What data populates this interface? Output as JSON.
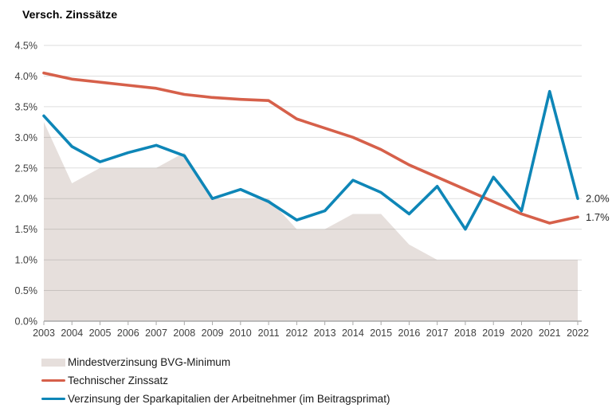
{
  "page": {
    "title": "Versch. Zinssätze"
  },
  "chart_data": {
    "type": "area+line",
    "title": "Versch. Zinssätze",
    "xlabel": "",
    "ylabel": "",
    "x": [
      2003,
      2004,
      2005,
      2006,
      2007,
      2008,
      2009,
      2010,
      2011,
      2012,
      2013,
      2014,
      2015,
      2016,
      2017,
      2018,
      2019,
      2020,
      2021,
      2022
    ],
    "series": [
      {
        "name": "Mindestverzinsung BVG-Minimum",
        "slug": "bvg-minimum",
        "type": "area",
        "color": "#e6dfdc",
        "values": [
          3.25,
          2.25,
          2.5,
          2.5,
          2.5,
          2.75,
          2.0,
          2.0,
          2.0,
          1.5,
          1.5,
          1.75,
          1.75,
          1.25,
          1.0,
          1.0,
          1.0,
          1.0,
          1.0,
          1.0
        ]
      },
      {
        "name": "Technischer Zinssatz",
        "slug": "technischer-zinssatz",
        "type": "line",
        "color": "#d6604a",
        "values": [
          4.05,
          3.95,
          3.9,
          3.85,
          3.8,
          3.7,
          3.65,
          3.62,
          3.6,
          3.3,
          3.15,
          3.0,
          2.8,
          2.55,
          2.35,
          2.15,
          1.95,
          1.75,
          1.6,
          1.7
        ]
      },
      {
        "name": "Verzinsung der Sparkapitalien der Arbeitnehmer (im Beitragsprimat)",
        "slug": "verzinsung-sparkapitalien",
        "type": "line",
        "color": "#0e86b7",
        "values": [
          3.35,
          2.85,
          2.6,
          2.75,
          2.87,
          2.7,
          2.0,
          2.15,
          1.95,
          1.65,
          1.8,
          2.3,
          2.1,
          1.75,
          2.2,
          1.5,
          2.35,
          1.8,
          3.75,
          2.0
        ]
      }
    ],
    "ylim": [
      0,
      4.5
    ],
    "ytick_step": 0.5,
    "ytick_labels": [
      "0.0%",
      "0.5%",
      "1.0%",
      "1.5%",
      "2.0%",
      "2.5%",
      "3.0%",
      "3.5%",
      "4.0%",
      "4.5%"
    ],
    "grid": true,
    "legend_position": "bottom-left",
    "annotations": [
      {
        "text": "2.0%",
        "series_index": 2
      },
      {
        "text": "1.7%",
        "series_index": 1
      }
    ]
  }
}
